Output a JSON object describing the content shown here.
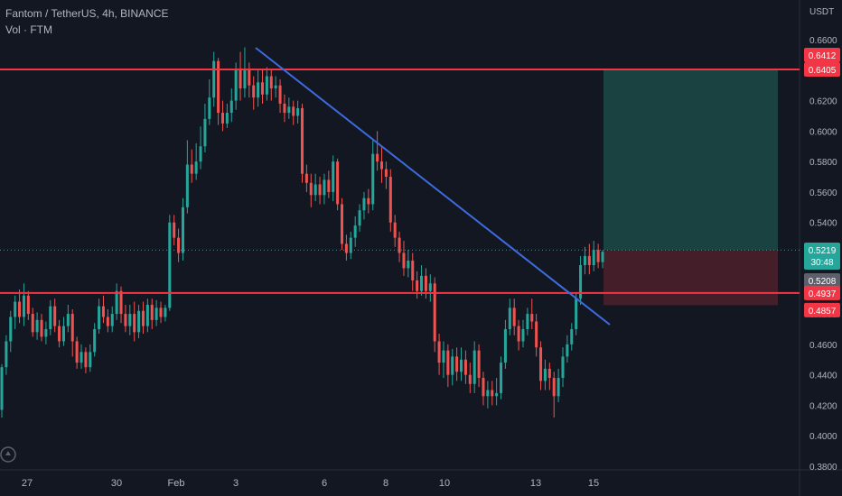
{
  "header": {
    "title": "Fantom / TetherUS, 4h, BINANCE",
    "volume_label": "Vol · FTM"
  },
  "colors": {
    "background": "#131722",
    "up": "#26a69a",
    "down": "#ef5350",
    "level_line": "#f23645",
    "trend_line": "#3d6be0",
    "profit_zone": "#1c4a45",
    "loss_zone": "#4a1f2a"
  },
  "chart_data": {
    "type": "candlestick",
    "symbol": "Fantom / TetherUS",
    "timeframe": "4h",
    "exchange": "BINANCE",
    "y_axis_unit": "USDT",
    "ylim": [
      0.378,
      0.668
    ],
    "y_ticks": [
      "0.6600",
      "0.6400",
      "0.6200",
      "0.6000",
      "0.5800",
      "0.5600",
      "0.5400",
      "0.5200",
      "0.4800",
      "0.4600",
      "0.4400",
      "0.4200",
      "0.4000",
      "0.3800"
    ],
    "x_ticks": [
      "27",
      "30",
      "Feb",
      "3",
      "6",
      "8",
      "10",
      "13",
      "15"
    ],
    "grid": false,
    "price_labels": [
      {
        "text": "0.6412",
        "value": 0.6412,
        "bg": "#f23645"
      },
      {
        "text": "0.6405",
        "value": 0.6405,
        "bg": "#f23645"
      },
      {
        "text": "0.5219",
        "value": 0.5219,
        "bg": "#26a69a",
        "sub": "30:48"
      },
      {
        "text": "0.5208",
        "value": 0.5208,
        "bg": "#5d606b"
      },
      {
        "text": "0.4937",
        "value": 0.4937,
        "bg": "#f23645"
      },
      {
        "text": "0.4857",
        "value": 0.4857,
        "bg": "#f23645"
      }
    ],
    "horizontal_levels": [
      0.6405,
      0.4937
    ],
    "current_price": 0.5208,
    "position": {
      "entry": 0.5219,
      "target": 0.6405,
      "stop": 0.4857
    },
    "trendline": [
      [
        0.656,
        0.4733
      ],
      [
        0.6555,
        0.4717
      ]
    ],
    "candles": [
      [
        0.417,
        0.445,
        0.412,
        0.447
      ],
      [
        0.445,
        0.462,
        0.44,
        0.466
      ],
      [
        0.462,
        0.478,
        0.455,
        0.482
      ],
      [
        0.478,
        0.488,
        0.47,
        0.492
      ],
      [
        0.488,
        0.478,
        0.474,
        0.496
      ],
      [
        0.478,
        0.492,
        0.472,
        0.5
      ],
      [
        0.492,
        0.48,
        0.476,
        0.495
      ],
      [
        0.48,
        0.468,
        0.465,
        0.484
      ],
      [
        0.468,
        0.476,
        0.463,
        0.481
      ],
      [
        0.476,
        0.465,
        0.462,
        0.48
      ],
      [
        0.465,
        0.47,
        0.46,
        0.475
      ],
      [
        0.47,
        0.485,
        0.466,
        0.489
      ],
      [
        0.485,
        0.472,
        0.468,
        0.49
      ],
      [
        0.472,
        0.462,
        0.458,
        0.476
      ],
      [
        0.462,
        0.472,
        0.459,
        0.478
      ],
      [
        0.472,
        0.48,
        0.468,
        0.486
      ],
      [
        0.48,
        0.462,
        0.452,
        0.483
      ],
      [
        0.462,
        0.448,
        0.444,
        0.465
      ],
      [
        0.448,
        0.455,
        0.444,
        0.46
      ],
      [
        0.455,
        0.445,
        0.441,
        0.458
      ],
      [
        0.445,
        0.455,
        0.442,
        0.46
      ],
      [
        0.455,
        0.47,
        0.452,
        0.474
      ],
      [
        0.47,
        0.485,
        0.467,
        0.49
      ],
      [
        0.485,
        0.478,
        0.474,
        0.492
      ],
      [
        0.478,
        0.472,
        0.468,
        0.483
      ],
      [
        0.472,
        0.48,
        0.468,
        0.485
      ],
      [
        0.48,
        0.495,
        0.476,
        0.5
      ],
      [
        0.495,
        0.48,
        0.474,
        0.498
      ],
      [
        0.48,
        0.472,
        0.468,
        0.486
      ],
      [
        0.472,
        0.48,
        0.466,
        0.486
      ],
      [
        0.48,
        0.468,
        0.462,
        0.488
      ],
      [
        0.468,
        0.482,
        0.464,
        0.486
      ],
      [
        0.482,
        0.472,
        0.467,
        0.488
      ],
      [
        0.472,
        0.486,
        0.468,
        0.49
      ],
      [
        0.486,
        0.476,
        0.47,
        0.49
      ],
      [
        0.476,
        0.484,
        0.472,
        0.489
      ],
      [
        0.484,
        0.478,
        0.474,
        0.488
      ],
      [
        0.478,
        0.484,
        0.475,
        0.486
      ],
      [
        0.484,
        0.54,
        0.482,
        0.545
      ],
      [
        0.54,
        0.53,
        0.525,
        0.545
      ],
      [
        0.53,
        0.52,
        0.514,
        0.536
      ],
      [
        0.52,
        0.55,
        0.515,
        0.556
      ],
      [
        0.55,
        0.578,
        0.546,
        0.594
      ],
      [
        0.578,
        0.572,
        0.566,
        0.588
      ],
      [
        0.572,
        0.58,
        0.568,
        0.592
      ],
      [
        0.58,
        0.59,
        0.575,
        0.603
      ],
      [
        0.59,
        0.608,
        0.586,
        0.618
      ],
      [
        0.608,
        0.622,
        0.604,
        0.634
      ],
      [
        0.622,
        0.646,
        0.616,
        0.652
      ],
      [
        0.646,
        0.612,
        0.604,
        0.648
      ],
      [
        0.612,
        0.605,
        0.6,
        0.62
      ],
      [
        0.605,
        0.612,
        0.602,
        0.618
      ],
      [
        0.612,
        0.62,
        0.606,
        0.628
      ],
      [
        0.62,
        0.64,
        0.614,
        0.645
      ],
      [
        0.64,
        0.628,
        0.62,
        0.652
      ],
      [
        0.628,
        0.64,
        0.622,
        0.655
      ],
      [
        0.64,
        0.63,
        0.622,
        0.645
      ],
      [
        0.63,
        0.622,
        0.614,
        0.636
      ],
      [
        0.622,
        0.632,
        0.616,
        0.64
      ],
      [
        0.632,
        0.624,
        0.618,
        0.64
      ],
      [
        0.624,
        0.636,
        0.62,
        0.642
      ],
      [
        0.636,
        0.628,
        0.62,
        0.64
      ],
      [
        0.628,
        0.63,
        0.622,
        0.636
      ],
      [
        0.63,
        0.618,
        0.612,
        0.634
      ],
      [
        0.618,
        0.612,
        0.606,
        0.624
      ],
      [
        0.612,
        0.616,
        0.608,
        0.622
      ],
      [
        0.616,
        0.61,
        0.604,
        0.62
      ],
      [
        0.61,
        0.615,
        0.605,
        0.62
      ],
      [
        0.615,
        0.572,
        0.566,
        0.618
      ],
      [
        0.572,
        0.566,
        0.56,
        0.578
      ],
      [
        0.566,
        0.558,
        0.55,
        0.572
      ],
      [
        0.558,
        0.565,
        0.554,
        0.572
      ],
      [
        0.565,
        0.558,
        0.552,
        0.57
      ],
      [
        0.558,
        0.568,
        0.552,
        0.572
      ],
      [
        0.568,
        0.56,
        0.556,
        0.574
      ],
      [
        0.56,
        0.58,
        0.554,
        0.584
      ],
      [
        0.58,
        0.552,
        0.548,
        0.582
      ],
      [
        0.552,
        0.526,
        0.522,
        0.556
      ],
      [
        0.526,
        0.52,
        0.515,
        0.532
      ],
      [
        0.52,
        0.53,
        0.516,
        0.534
      ],
      [
        0.53,
        0.538,
        0.524,
        0.544
      ],
      [
        0.538,
        0.548,
        0.534,
        0.552
      ],
      [
        0.548,
        0.556,
        0.542,
        0.56
      ],
      [
        0.556,
        0.552,
        0.546,
        0.562
      ],
      [
        0.552,
        0.585,
        0.548,
        0.595
      ],
      [
        0.585,
        0.58,
        0.574,
        0.6
      ],
      [
        0.58,
        0.575,
        0.566,
        0.59
      ],
      [
        0.575,
        0.57,
        0.562,
        0.58
      ],
      [
        0.57,
        0.54,
        0.534,
        0.575
      ],
      [
        0.54,
        0.53,
        0.524,
        0.545
      ],
      [
        0.53,
        0.52,
        0.514,
        0.534
      ],
      [
        0.52,
        0.51,
        0.505,
        0.528
      ],
      [
        0.51,
        0.515,
        0.504,
        0.522
      ],
      [
        0.515,
        0.502,
        0.495,
        0.52
      ],
      [
        0.502,
        0.495,
        0.49,
        0.508
      ],
      [
        0.495,
        0.505,
        0.492,
        0.512
      ],
      [
        0.505,
        0.495,
        0.49,
        0.51
      ],
      [
        0.495,
        0.5,
        0.488,
        0.506
      ],
      [
        0.5,
        0.462,
        0.455,
        0.504
      ],
      [
        0.462,
        0.448,
        0.44,
        0.467
      ],
      [
        0.448,
        0.456,
        0.438,
        0.462
      ],
      [
        0.456,
        0.44,
        0.432,
        0.46
      ],
      [
        0.44,
        0.452,
        0.433,
        0.457
      ],
      [
        0.452,
        0.442,
        0.436,
        0.458
      ],
      [
        0.442,
        0.45,
        0.436,
        0.458
      ],
      [
        0.45,
        0.44,
        0.434,
        0.456
      ],
      [
        0.44,
        0.434,
        0.428,
        0.448
      ],
      [
        0.434,
        0.456,
        0.428,
        0.462
      ],
      [
        0.456,
        0.438,
        0.432,
        0.46
      ],
      [
        0.438,
        0.426,
        0.42,
        0.442
      ],
      [
        0.426,
        0.43,
        0.418,
        0.436
      ],
      [
        0.43,
        0.426,
        0.42,
        0.436
      ],
      [
        0.426,
        0.428,
        0.42,
        0.438
      ],
      [
        0.428,
        0.448,
        0.424,
        0.452
      ],
      [
        0.448,
        0.47,
        0.444,
        0.476
      ],
      [
        0.47,
        0.484,
        0.466,
        0.49
      ],
      [
        0.484,
        0.472,
        0.466,
        0.49
      ],
      [
        0.472,
        0.462,
        0.456,
        0.476
      ],
      [
        0.462,
        0.47,
        0.458,
        0.476
      ],
      [
        0.47,
        0.48,
        0.466,
        0.484
      ],
      [
        0.48,
        0.475,
        0.47,
        0.49
      ],
      [
        0.475,
        0.458,
        0.452,
        0.48
      ],
      [
        0.458,
        0.436,
        0.43,
        0.462
      ],
      [
        0.436,
        0.444,
        0.43,
        0.45
      ],
      [
        0.444,
        0.438,
        0.43,
        0.448
      ],
      [
        0.438,
        0.426,
        0.412,
        0.442
      ],
      [
        0.426,
        0.438,
        0.422,
        0.444
      ],
      [
        0.438,
        0.452,
        0.432,
        0.458
      ],
      [
        0.452,
        0.46,
        0.448,
        0.466
      ],
      [
        0.46,
        0.47,
        0.456,
        0.474
      ],
      [
        0.47,
        0.49,
        0.466,
        0.494
      ],
      [
        0.49,
        0.512,
        0.486,
        0.518
      ],
      [
        0.512,
        0.518,
        0.506,
        0.524
      ],
      [
        0.518,
        0.512,
        0.506,
        0.526
      ],
      [
        0.512,
        0.522,
        0.508,
        0.528
      ],
      [
        0.522,
        0.514,
        0.51,
        0.526
      ],
      [
        0.514,
        0.5208,
        0.51,
        0.5219
      ]
    ]
  }
}
